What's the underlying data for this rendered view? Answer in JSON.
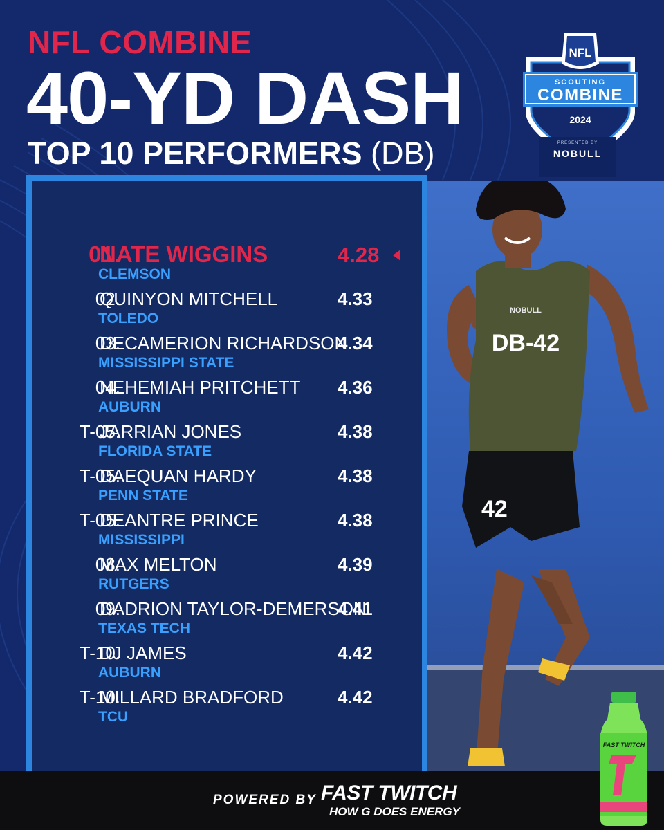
{
  "header": {
    "eyebrow": "NFL COMBINE",
    "title": "40-YD DASH",
    "subtitle": "TOP 10 PERFORMERS",
    "subtitle_suffix": "(DB)"
  },
  "logo": {
    "league": "NFL",
    "line1": "SCOUTING",
    "line2": "COMBINE",
    "year": "2024",
    "presented": "PRESENTED BY",
    "sponsor": "NOBULL"
  },
  "leaderboard": [
    {
      "rank": "01.",
      "name": "NATE WIGGINS",
      "school": "CLEMSON",
      "time": "4.28"
    },
    {
      "rank": "02.",
      "name": "QUINYON MITCHELL",
      "school": "TOLEDO",
      "time": "4.33"
    },
    {
      "rank": "03.",
      "name": "DECAMERION RICHARDSON",
      "school": "MISSISSIPPI STATE",
      "time": "4.34"
    },
    {
      "rank": "04.",
      "name": "NEHEMIAH PRITCHETT",
      "school": "AUBURN",
      "time": "4.36"
    },
    {
      "rank": "T-05.",
      "name": "JARRIAN JONES",
      "school": "FLORIDA STATE",
      "time": "4.38"
    },
    {
      "rank": "T-05.",
      "name": "DAEQUAN HARDY",
      "school": "PENN STATE",
      "time": "4.38"
    },
    {
      "rank": "T-05.",
      "name": "DEANTRE PRINCE",
      "school": "MISSISSIPPI",
      "time": "4.38"
    },
    {
      "rank": "08.",
      "name": "MAX MELTON",
      "school": "RUTGERS",
      "time": "4.39"
    },
    {
      "rank": "09.",
      "name": "DADRION TAYLOR-DEMERSON",
      "school": "TEXAS TECH",
      "time": "4.41"
    },
    {
      "rank": "T-10.",
      "name": "DJ JAMES",
      "school": "AUBURN",
      "time": "4.42"
    },
    {
      "rank": "T-10.",
      "name": "MILLARD BRADFORD",
      "school": "TCU",
      "time": "4.42"
    }
  ],
  "photo": {
    "jersey": "DB-42",
    "jersey_brand": "NOBULL",
    "shorts_number": "42"
  },
  "footer": {
    "powered_by": "POWERED BY",
    "brand": "FAST TWITCH",
    "tagline": "HOW G DOES ENERGY",
    "bottle_brand": "FAST TWITCH"
  },
  "colors": {
    "background": "#13296b",
    "panel": "#132a62",
    "panel_border": "#2c85de",
    "accent_red": "#e0264a",
    "school_blue": "#3aa0ff"
  }
}
